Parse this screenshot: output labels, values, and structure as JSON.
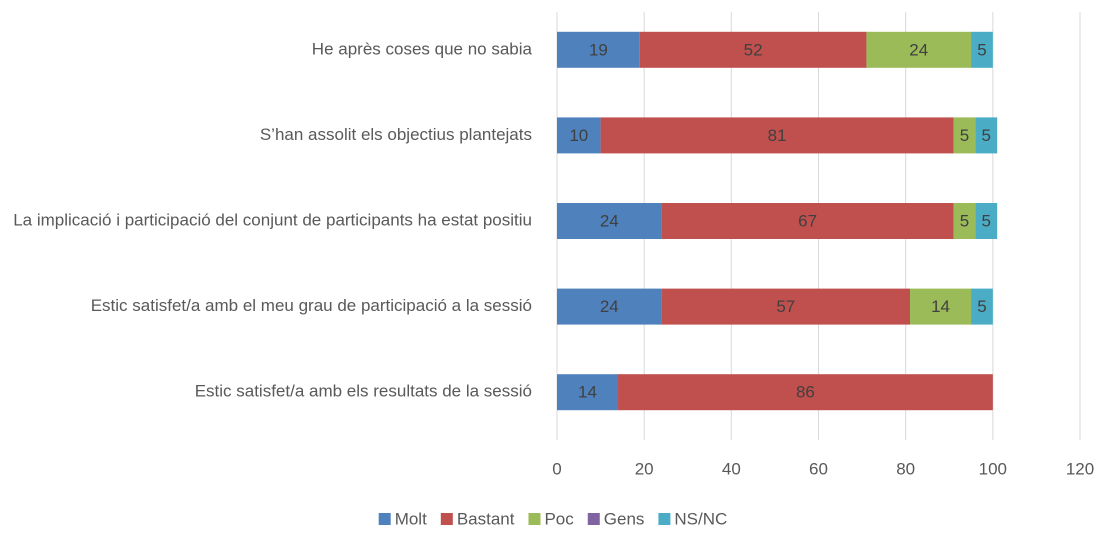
{
  "chart_data": {
    "type": "stacked-barh",
    "categories": [
      "He après coses que no sabia",
      "S’han assolit els objectius plantejats",
      "La implicació i participació del conjunt de participants ha estat positiu",
      "Estic satisfet/a amb el meu grau de participació a la sessió",
      "Estic satisfet/a amb els resultats de la sessió"
    ],
    "series": [
      {
        "name": "Molt",
        "color": "#4f81bd",
        "values": [
          19,
          10,
          24,
          24,
          14
        ]
      },
      {
        "name": "Bastant",
        "color": "#c0504d",
        "values": [
          52,
          81,
          67,
          57,
          86
        ]
      },
      {
        "name": "Poc",
        "color": "#9bbb59",
        "values": [
          24,
          5,
          5,
          14,
          null
        ]
      },
      {
        "name": "Gens",
        "color": "#8064a2",
        "values": [
          null,
          null,
          null,
          null,
          null
        ]
      },
      {
        "name": "NS/NC",
        "color": "#4bacc6",
        "values": [
          5,
          5,
          5,
          5,
          null
        ]
      }
    ],
    "xlim": [
      0,
      120
    ],
    "xticks": [
      0,
      20,
      40,
      60,
      80,
      100,
      120
    ],
    "grid": true,
    "legend": "bottom"
  }
}
